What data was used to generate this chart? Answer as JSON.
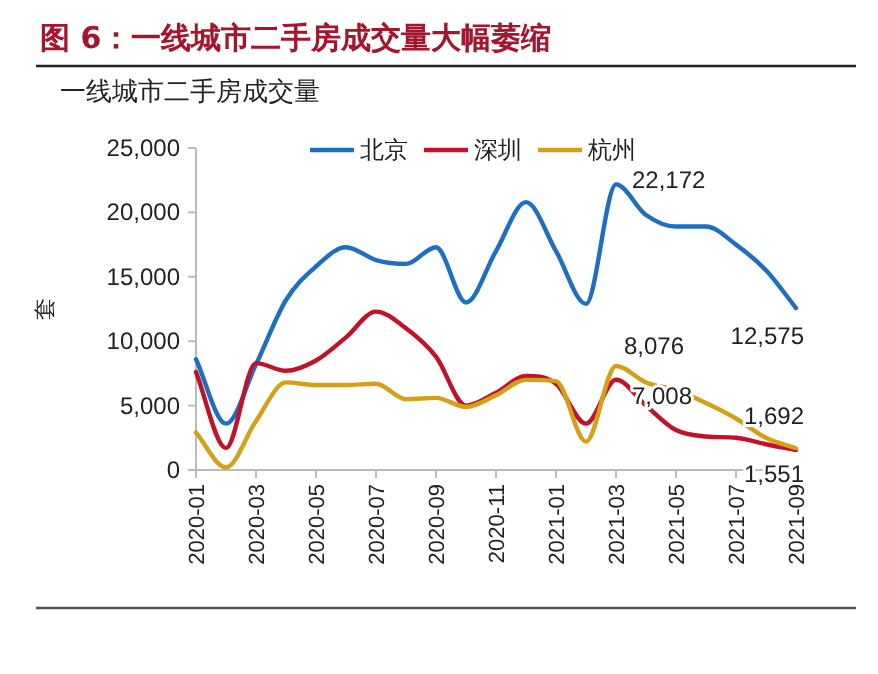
{
  "chart_data": {
    "type": "line",
    "title": "图 6：一线城市二手房成交量大幅萎缩",
    "subtitle": "一线城市二手房成交量",
    "ylabel": "套",
    "x": [
      "2020-01",
      "2020-02",
      "2020-03",
      "2020-04",
      "2020-05",
      "2020-06",
      "2020-07",
      "2020-08",
      "2020-09",
      "2020-10",
      "2020-11",
      "2020-12",
      "2021-01",
      "2021-02",
      "2021-03",
      "2021-04",
      "2021-05",
      "2021-06",
      "2021-07",
      "2021-08",
      "2021-09"
    ],
    "series": [
      {
        "name": "北京",
        "color": "#1f6fc0",
        "values": [
          8600,
          3600,
          8200,
          13200,
          15800,
          17300,
          16300,
          16000,
          17300,
          13000,
          17000,
          20800,
          17000,
          12900,
          22172,
          19800,
          18900,
          18900,
          17500,
          15500,
          12575
        ]
      },
      {
        "name": "深圳",
        "color": "#c0122b",
        "values": [
          7600,
          1700,
          8300,
          7700,
          8500,
          10300,
          12300,
          11000,
          8800,
          5000,
          6000,
          7300,
          6700,
          3600,
          7008,
          5000,
          3100,
          2600,
          2500,
          2000,
          1551
        ]
      },
      {
        "name": "杭州",
        "color": "#d4a017",
        "values": [
          2900,
          200,
          3800,
          6800,
          6600,
          6600,
          6700,
          5500,
          5600,
          4900,
          5800,
          7000,
          6900,
          2200,
          8076,
          6800,
          6200,
          5200,
          4000,
          2500,
          1692
        ]
      }
    ],
    "annotations": [
      {
        "text": "22,172",
        "x": "2021-03",
        "y": 22172
      },
      {
        "text": "12,575",
        "x": "2021-09",
        "y": 12575
      },
      {
        "text": "8,076",
        "x": "2021-03",
        "y": 8076
      },
      {
        "text": "7,008",
        "x": "2021-03",
        "y": 7008
      },
      {
        "text": "1,692",
        "x": "2021-09",
        "y": 1692
      },
      {
        "text": "1,551",
        "x": "2021-09",
        "y": 1551
      }
    ],
    "xlim": [
      "2020-01",
      "2021-09"
    ],
    "xticks": [
      "2020-01",
      "2020-03",
      "2020-05",
      "2020-07",
      "2020-09",
      "2020-11",
      "2021-01",
      "2021-03",
      "2021-05",
      "2021-07",
      "2021-09"
    ],
    "ylim": [
      0,
      25000
    ],
    "yticks": [
      {
        "value": 0,
        "label": "0"
      },
      {
        "value": 5000,
        "label": "5,000"
      },
      {
        "value": 10000,
        "label": "10,000"
      },
      {
        "value": 15000,
        "label": "15,000"
      },
      {
        "value": 20000,
        "label": "20,000"
      },
      {
        "value": 25000,
        "label": "25,000"
      }
    ],
    "grid": false,
    "legend": "top",
    "marker": "none",
    "line_style": "solid"
  }
}
